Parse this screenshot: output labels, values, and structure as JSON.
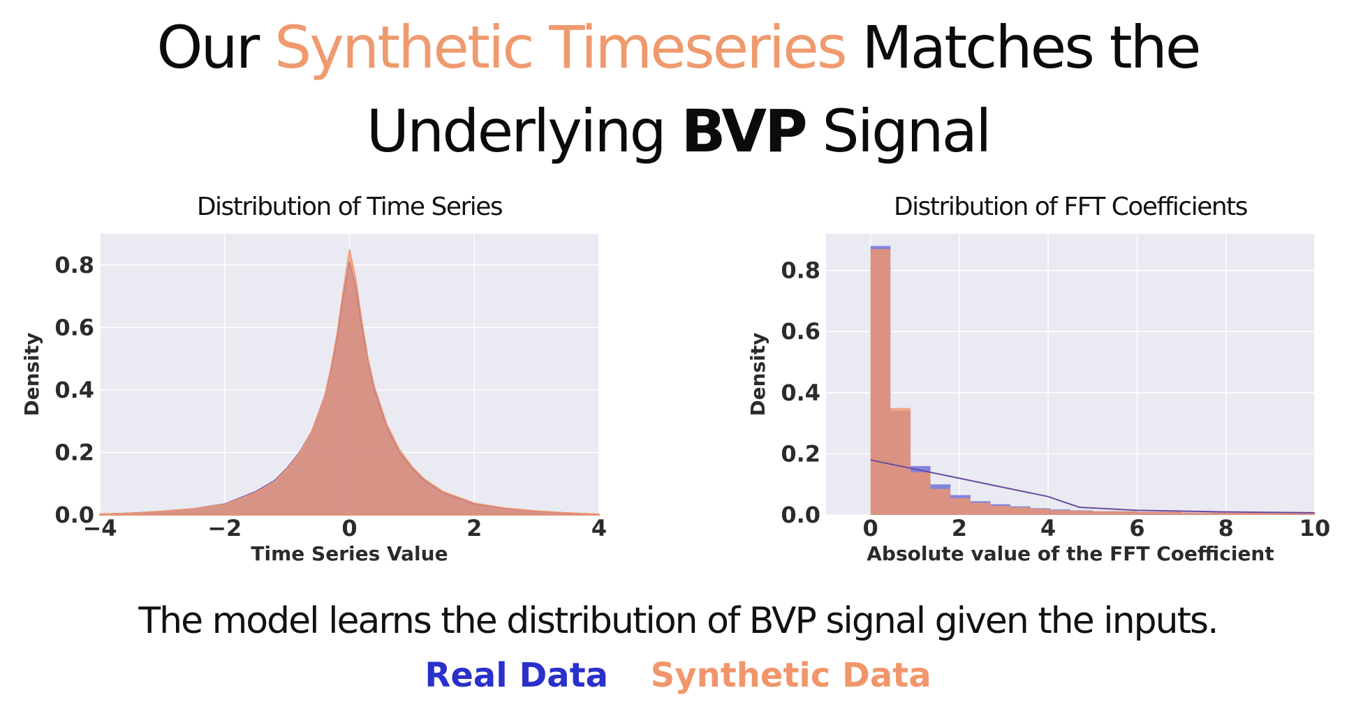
{
  "slide": {
    "title_line1_a": "Our ",
    "title_line1_b": "Synthetic Timeseries",
    "title_line1_c": " Matches the",
    "title_line2_a": "Underlying ",
    "title_line2_b": "BVP",
    "title_line2_c": " Signal",
    "caption": "The model learns the distribution of BVP signal given the inputs.",
    "legend_real": "Real Data",
    "legend_synthetic": "Synthetic Data"
  },
  "colors": {
    "accent": "#ef9a6e",
    "real": "#2a30c9",
    "synthetic": "#f1966a",
    "plot_bg": "#eaeaf2",
    "bar_overlap": "#c19a88"
  },
  "chart_data": [
    {
      "type": "area",
      "title": "Distribution of Time Series",
      "xlabel": "Time Series Value",
      "ylabel": "Density",
      "xlim": [
        -4,
        4
      ],
      "ylim": [
        0,
        0.9
      ],
      "xticks": [
        -4,
        -2,
        0,
        2,
        4
      ],
      "xtick_labels": [
        "−4",
        "−2",
        "0",
        "2",
        "4"
      ],
      "yticks": [
        0.0,
        0.2,
        0.4,
        0.6,
        0.8
      ],
      "ytick_labels": [
        "0.0",
        "0.2",
        "0.4",
        "0.6",
        "0.8"
      ],
      "grid": true,
      "x": [
        -4,
        -3.5,
        -3,
        -2.5,
        -2,
        -1.5,
        -1.2,
        -1,
        -0.8,
        -0.6,
        -0.4,
        -0.3,
        -0.2,
        -0.1,
        0,
        0.1,
        0.2,
        0.3,
        0.4,
        0.6,
        0.8,
        1,
        1.2,
        1.5,
        2,
        2.5,
        3,
        3.5,
        4
      ],
      "series": [
        {
          "name": "Real Data",
          "values": [
            0.003,
            0.006,
            0.012,
            0.02,
            0.035,
            0.075,
            0.11,
            0.15,
            0.2,
            0.27,
            0.38,
            0.46,
            0.56,
            0.7,
            0.81,
            0.73,
            0.6,
            0.49,
            0.4,
            0.28,
            0.2,
            0.15,
            0.11,
            0.07,
            0.035,
            0.02,
            0.012,
            0.006,
            0.003
          ]
        },
        {
          "name": "Synthetic Data",
          "values": [
            0.003,
            0.006,
            0.012,
            0.02,
            0.034,
            0.073,
            0.108,
            0.148,
            0.198,
            0.27,
            0.38,
            0.47,
            0.58,
            0.72,
            0.85,
            0.76,
            0.62,
            0.5,
            0.41,
            0.29,
            0.21,
            0.155,
            0.115,
            0.075,
            0.038,
            0.022,
            0.013,
            0.007,
            0.003
          ]
        }
      ]
    },
    {
      "type": "bar",
      "title": "Distribution of FFT Coefficients",
      "xlabel": "Absolute value of the FFT Coefficient",
      "ylabel": "Density",
      "xlim": [
        -1,
        10
      ],
      "ylim": [
        0,
        0.92
      ],
      "xticks": [
        0,
        2,
        4,
        6,
        8,
        10
      ],
      "xtick_labels": [
        "0",
        "2",
        "4",
        "6",
        "8",
        "10"
      ],
      "yticks": [
        0.0,
        0.2,
        0.4,
        0.6,
        0.8
      ],
      "ytick_labels": [
        "0.0",
        "0.2",
        "0.4",
        "0.6",
        "0.8"
      ],
      "grid": true,
      "bin_edges": [
        0,
        0.45,
        0.9,
        1.35,
        1.8,
        2.25,
        2.7,
        3.15,
        3.6,
        4.05,
        4.5,
        5,
        6,
        7,
        8,
        9,
        10
      ],
      "series": [
        {
          "name": "Real Data",
          "values": [
            0.88,
            0.34,
            0.16,
            0.1,
            0.065,
            0.045,
            0.035,
            0.028,
            0.022,
            0.018,
            0.015,
            0.012,
            0.01,
            0.008,
            0.007,
            0.006
          ]
        },
        {
          "name": "Synthetic Data",
          "values": [
            0.87,
            0.35,
            0.14,
            0.085,
            0.055,
            0.04,
            0.03,
            0.025,
            0.02,
            0.016,
            0.014,
            0.012,
            0.01,
            0.008,
            0.007,
            0.006
          ]
        }
      ],
      "kde_line": {
        "x": [
          0,
          1,
          2,
          3,
          4,
          4.7,
          6,
          8,
          10
        ],
        "y": [
          0.18,
          0.15,
          0.12,
          0.09,
          0.06,
          0.025,
          0.015,
          0.01,
          0.007
        ]
      }
    }
  ]
}
